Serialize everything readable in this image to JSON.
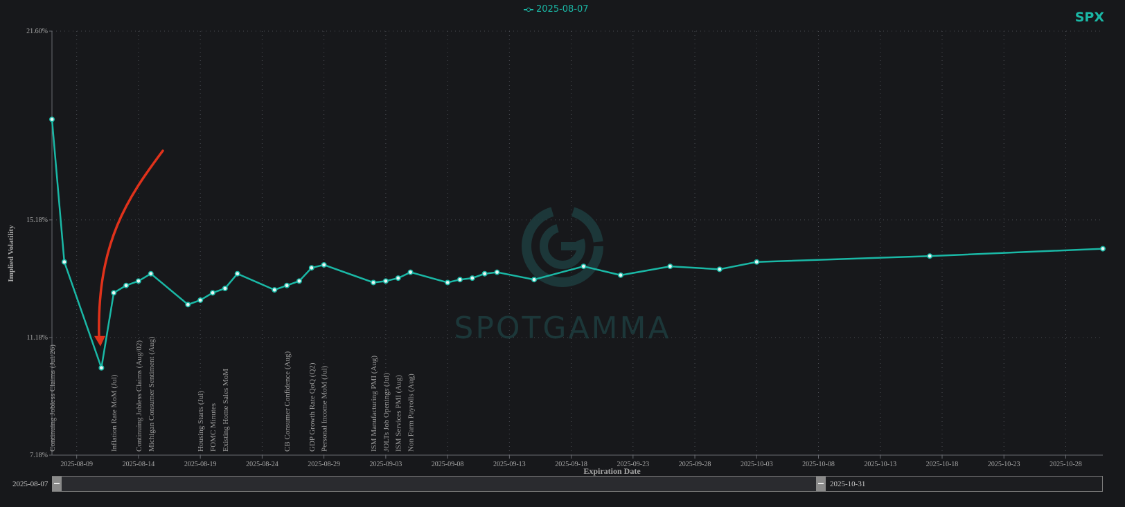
{
  "legend": {
    "label": "2025-08-07"
  },
  "ticker": "SPX",
  "watermark": "SPOTGAMMA",
  "zoom": {
    "start_label": "2025-08-07",
    "end_label": "2025-10-31",
    "window_start": 0.0,
    "window_end": 0.73
  },
  "colors": {
    "line": "#1ab8a6",
    "background": "#17181b",
    "arrow": "#e0321b",
    "watermark": "#1d3b3d"
  },
  "chart_data": {
    "type": "line",
    "title": "",
    "xlabel": "Expiration Date",
    "ylabel": "Implied Volatility",
    "x_range": [
      "2025-08-07",
      "2025-10-31"
    ],
    "ylim": [
      7.18,
      21.6
    ],
    "y_ticks": [
      "7.18%",
      "11.18%",
      "15.18%",
      "21.60%"
    ],
    "y_tick_values": [
      7.18,
      11.18,
      15.18,
      21.6
    ],
    "x_ticks": [
      "2025-08-09",
      "2025-08-14",
      "2025-08-19",
      "2025-08-24",
      "2025-08-29",
      "2025-09-03",
      "2025-09-08",
      "2025-09-13",
      "2025-09-18",
      "2025-09-23",
      "2025-09-28",
      "2025-10-03",
      "2025-10-08",
      "2025-10-13",
      "2025-10-18",
      "2025-10-23",
      "2025-10-28"
    ],
    "grid": true,
    "series": [
      {
        "name": "2025-08-07",
        "x": [
          "2025-08-07",
          "2025-08-08",
          "2025-08-11",
          "2025-08-12",
          "2025-08-13",
          "2025-08-14",
          "2025-08-15",
          "2025-08-18",
          "2025-08-19",
          "2025-08-20",
          "2025-08-21",
          "2025-08-22",
          "2025-08-25",
          "2025-08-26",
          "2025-08-27",
          "2025-08-28",
          "2025-08-29",
          "2025-09-02",
          "2025-09-03",
          "2025-09-04",
          "2025-09-05",
          "2025-09-08",
          "2025-09-09",
          "2025-09-10",
          "2025-09-11",
          "2025-09-12",
          "2025-09-15",
          "2025-09-19",
          "2025-09-22",
          "2025-09-26",
          "2025-09-30",
          "2025-10-03",
          "2025-10-17",
          "2025-10-31"
        ],
        "values": [
          18.6,
          13.75,
          10.15,
          12.7,
          12.95,
          13.1,
          13.35,
          12.3,
          12.45,
          12.7,
          12.85,
          13.35,
          12.8,
          12.95,
          13.1,
          13.55,
          13.65,
          13.05,
          13.1,
          13.2,
          13.4,
          13.05,
          13.15,
          13.2,
          13.35,
          13.4,
          13.15,
          13.6,
          13.3,
          13.6,
          13.5,
          13.75,
          13.95,
          14.2
        ]
      }
    ],
    "annotations": [
      {
        "label": "Continuing Jobless Claims (Jul/26)",
        "x": "2025-08-07"
      },
      {
        "label": "Inflation Rate MoM (Jul)",
        "x": "2025-08-12"
      },
      {
        "label": "Continuing Jobless Claims (Aug/02)",
        "x": "2025-08-14"
      },
      {
        "label": "Michigan Consumer Sentiment (Aug)",
        "x": "2025-08-15"
      },
      {
        "label": "Housing Starts (Jul)",
        "x": "2025-08-19"
      },
      {
        "label": "FOMC Minutes",
        "x": "2025-08-20"
      },
      {
        "label": "Existing Home Sales MoM",
        "x": "2025-08-21"
      },
      {
        "label": "CB Consumer Confidence (Aug)",
        "x": "2025-08-26"
      },
      {
        "label": "GDP Growth Rate QoQ (Q2)",
        "x": "2025-08-28"
      },
      {
        "label": "Personal Income MoM (Jul)",
        "x": "2025-08-29"
      },
      {
        "label": "ISM Manufacturing PMI (Aug)",
        "x": "2025-09-02"
      },
      {
        "label": "JOLTs Job Openings (Jul)",
        "x": "2025-09-03"
      },
      {
        "label": "ISM Services PMI (Aug)",
        "x": "2025-09-04"
      },
      {
        "label": "Non Farm Payrolls (Aug)",
        "x": "2025-09-05"
      }
    ]
  }
}
